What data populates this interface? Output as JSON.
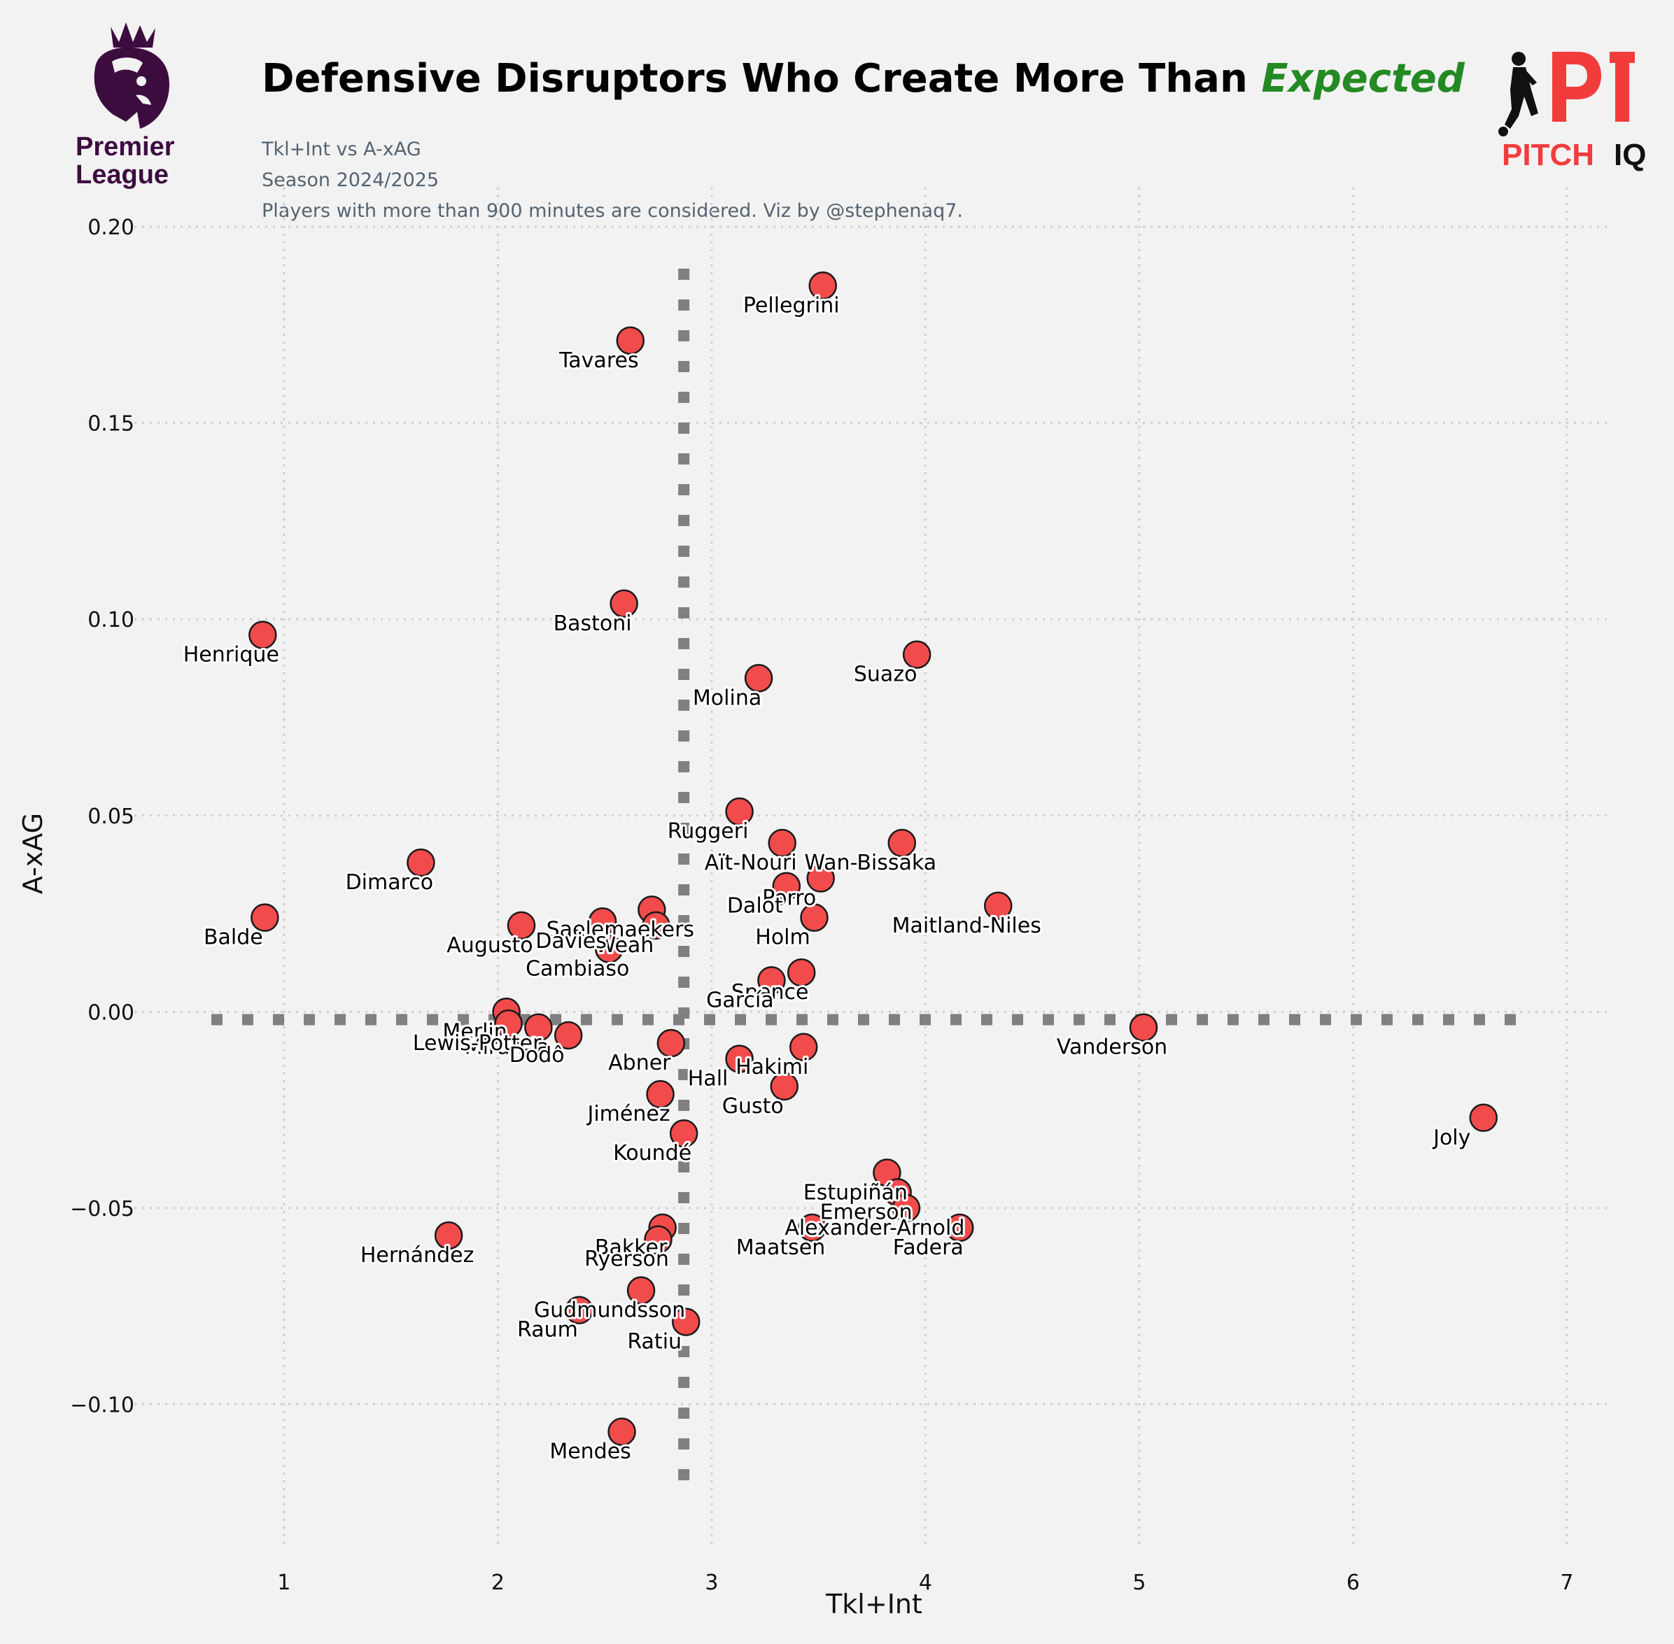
{
  "header": {
    "title_main": "Defensive Disruptors Who Create More Than",
    "title_accent": "Expected",
    "subtitle_1": "Tkl+Int vs A-xAG",
    "subtitle_2": "Season 2024/2025",
    "subtitle_3": "Players with more than 900 minutes are considered. Viz by @stephenaq7."
  },
  "logos": {
    "left_text_1": "Premier",
    "left_text_2": "League",
    "right_text_1": "PITCH",
    "right_text_2": "IQ",
    "right_colors": {
      "red": "#f23c3c",
      "dark": "#111111"
    },
    "left_color": "#3d0c3f"
  },
  "chart_data": {
    "type": "scatter",
    "xlabel": "Tkl+Int",
    "ylabel": "A-xAG",
    "xlim": [
      0.3,
      7.2
    ],
    "ylim": [
      -0.137,
      0.21
    ],
    "xticks": [
      1,
      2,
      3,
      4,
      5,
      6,
      7
    ],
    "yticks": [
      -0.1,
      -0.05,
      0.0,
      0.05,
      0.1,
      0.15,
      0.2
    ],
    "ytick_labels": [
      "−0.10",
      "−0.05",
      "0.00",
      "0.05",
      "0.10",
      "0.15",
      "0.20"
    ],
    "grid": true,
    "reference_lines": {
      "x": 2.87,
      "y": -0.002
    },
    "marker_color": "#f24b4b",
    "points": [
      {
        "name": "Pellegrini",
        "x": 3.52,
        "y": 0.185
      },
      {
        "name": "Tavares",
        "x": 2.62,
        "y": 0.171
      },
      {
        "name": "Bastoni",
        "x": 2.59,
        "y": 0.104
      },
      {
        "name": "Henrique",
        "x": 0.9,
        "y": 0.096
      },
      {
        "name": "Suazo",
        "x": 3.96,
        "y": 0.091
      },
      {
        "name": "Molina",
        "x": 3.22,
        "y": 0.085
      },
      {
        "name": "Ruggeri",
        "x": 3.13,
        "y": 0.051
      },
      {
        "name": "Aït-Nouri",
        "x": 3.33,
        "y": 0.043
      },
      {
        "name": "Wan-Bissaka",
        "x": 3.89,
        "y": 0.043
      },
      {
        "name": "Dimarco",
        "x": 1.64,
        "y": 0.038
      },
      {
        "name": "Porro",
        "x": 3.51,
        "y": 0.034
      },
      {
        "name": "Dalot",
        "x": 3.35,
        "y": 0.032
      },
      {
        "name": "Maitland-Niles",
        "x": 4.34,
        "y": 0.027
      },
      {
        "name": "Balde",
        "x": 0.91,
        "y": 0.024
      },
      {
        "name": "Holm",
        "x": 3.48,
        "y": 0.024
      },
      {
        "name": "Saelemaekers",
        "x": 2.72,
        "y": 0.026
      },
      {
        "name": "Weah",
        "x": 2.74,
        "y": 0.022
      },
      {
        "name": "Davies",
        "x": 2.49,
        "y": 0.023
      },
      {
        "name": "Augusto",
        "x": 2.11,
        "y": 0.022
      },
      {
        "name": "Cambiaso",
        "x": 2.52,
        "y": 0.016
      },
      {
        "name": "Spence",
        "x": 3.42,
        "y": 0.01
      },
      {
        "name": "García",
        "x": 3.28,
        "y": 0.008
      },
      {
        "name": "Merlin",
        "x": 2.04,
        "y": 0.0
      },
      {
        "name": "Miranda",
        "x": 2.19,
        "y": -0.004
      },
      {
        "name": "Lewis-Potter",
        "x": 2.05,
        "y": -0.003
      },
      {
        "name": "Dodô",
        "x": 2.33,
        "y": -0.006
      },
      {
        "name": "Vanderson",
        "x": 5.02,
        "y": -0.004
      },
      {
        "name": "Abner",
        "x": 2.81,
        "y": -0.008
      },
      {
        "name": "Hakimi",
        "x": 3.43,
        "y": -0.009
      },
      {
        "name": "Hall",
        "x": 3.13,
        "y": -0.012
      },
      {
        "name": "Gusto",
        "x": 3.34,
        "y": -0.019
      },
      {
        "name": "Jiménez",
        "x": 2.76,
        "y": -0.021
      },
      {
        "name": "Joly",
        "x": 6.61,
        "y": -0.027
      },
      {
        "name": "Koundé",
        "x": 2.87,
        "y": -0.031
      },
      {
        "name": "Estupiñán",
        "x": 3.82,
        "y": -0.041
      },
      {
        "name": "Emerson",
        "x": 3.87,
        "y": -0.046
      },
      {
        "name": "Alexander-Arnold",
        "x": 3.91,
        "y": -0.05
      },
      {
        "name": "Fadera",
        "x": 4.16,
        "y": -0.055
      },
      {
        "name": "Maatsen",
        "x": 3.47,
        "y": -0.055
      },
      {
        "name": "Hernández",
        "x": 1.77,
        "y": -0.057
      },
      {
        "name": "Bakker",
        "x": 2.77,
        "y": -0.055
      },
      {
        "name": "Ryerson",
        "x": 2.75,
        "y": -0.058
      },
      {
        "name": "Gudmundsson",
        "x": 2.67,
        "y": -0.071
      },
      {
        "name": "Raum",
        "x": 2.38,
        "y": -0.076
      },
      {
        "name": "Ratiu",
        "x": 2.88,
        "y": -0.079
      },
      {
        "name": "Mendes",
        "x": 2.58,
        "y": -0.107
      }
    ]
  }
}
